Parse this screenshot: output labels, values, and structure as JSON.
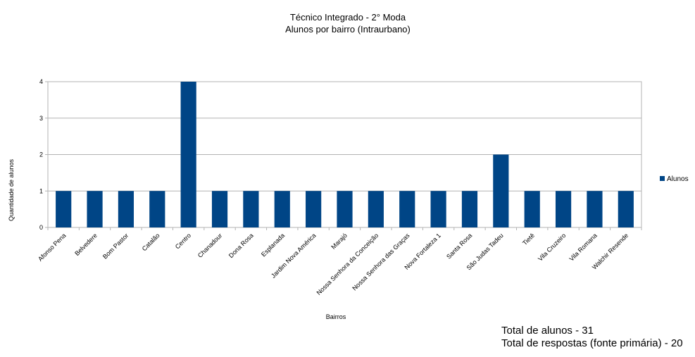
{
  "chart_data": {
    "type": "bar",
    "title": "Técnico Integrado - 2° Moda",
    "subtitle": "Alunos por bairro (Intraurbano)",
    "xlabel": "Bairros",
    "ylabel": "Quantidade de alunos",
    "ylim": [
      0,
      4
    ],
    "yticks": [
      "0",
      "1",
      "2",
      "3",
      "4"
    ],
    "grid": true,
    "legend_position": "right",
    "categories": [
      "Afonso Pena",
      "Belvedere",
      "Bom Pastor",
      "Catalão",
      "Centro",
      "Chanadour",
      "Dona Rosa",
      "Esplanada",
      "Jardim Nova América",
      "Marajó",
      "Nossa Senhora da Conceição",
      "Nossa Senhora das Graças",
      "Nova Fortaleza 1",
      "Santa Rosa",
      "São Judas Tadeu",
      "Tietê",
      "Vila Cruzeiro",
      "Vila Romana",
      "Walchir Resende"
    ],
    "series": [
      {
        "name": "Alunos",
        "color": "#004586",
        "values": [
          1,
          1,
          1,
          1,
          4,
          1,
          1,
          1,
          1,
          1,
          1,
          1,
          1,
          1,
          2,
          1,
          1,
          1,
          1
        ]
      }
    ]
  },
  "notes": {
    "total_alunos": "Total de alunos - 31",
    "total_respostas": "Total de respostas (fonte primária) - 20"
  }
}
